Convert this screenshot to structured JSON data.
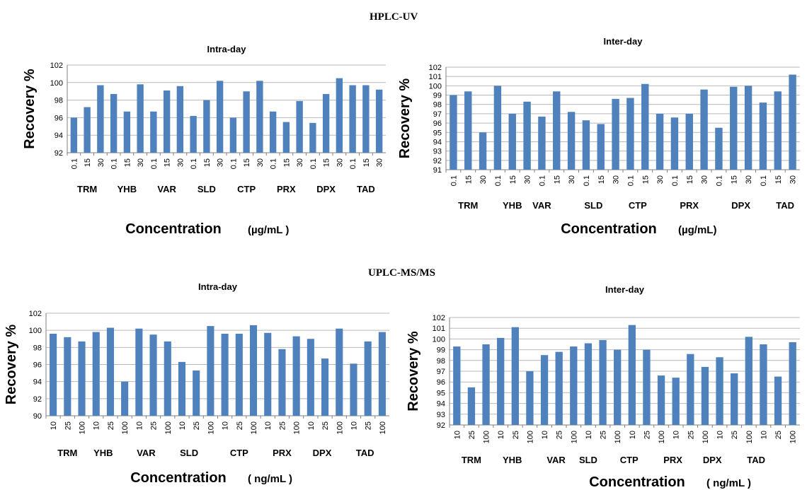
{
  "sections": {
    "hplc": {
      "title": "HPLC-UV"
    },
    "uplc": {
      "title": "UPLC-MS/MS"
    }
  },
  "bar_color": "#4F81BD",
  "chart_data": [
    {
      "id": "hplc-intra",
      "type": "bar",
      "title": "Intra-day",
      "ylabel": "Recovery %",
      "xlabel": "Concentration",
      "xunit": "(µg/mL )",
      "ylim": [
        92,
        102
      ],
      "yticks": [
        92,
        94,
        96,
        98,
        100,
        102
      ],
      "grid": true,
      "categories": [
        "0.1",
        "15",
        "30",
        "0.1",
        "15",
        "30",
        "0.1",
        "15",
        "30",
        "0.1",
        "15",
        "30",
        "0.1",
        "15",
        "30",
        "0.1",
        "15",
        "30",
        "0.1",
        "15",
        "30",
        "0.1",
        "15",
        "30"
      ],
      "values": [
        96.0,
        97.2,
        99.7,
        98.7,
        96.7,
        99.8,
        96.7,
        99.1,
        99.6,
        96.2,
        98.0,
        100.2,
        96.0,
        99.0,
        100.2,
        96.7,
        95.5,
        97.9,
        95.4,
        98.7,
        100.5,
        99.7,
        99.7,
        99.2
      ],
      "groups": [
        {
          "label": "TRM",
          "center": 1
        },
        {
          "label": "YHB",
          "center": 4
        },
        {
          "label": "VAR",
          "center": 7
        },
        {
          "label": "SLD",
          "center": 10
        },
        {
          "label": "CTP",
          "center": 13
        },
        {
          "label": "PRX",
          "center": 16
        },
        {
          "label": "DPX",
          "center": 19
        },
        {
          "label": "TAD",
          "center": 22
        }
      ]
    },
    {
      "id": "hplc-inter",
      "type": "bar",
      "title": "Inter-day",
      "ylabel": "Recovery %",
      "xlabel": "Concentration",
      "xunit": "(µg/mL)",
      "ylim": [
        91,
        102
      ],
      "yticks": [
        91,
        92,
        93,
        94,
        95,
        96,
        97,
        98,
        99,
        100,
        101,
        102
      ],
      "grid": true,
      "categories": [
        "0.1",
        "15",
        "30",
        "0.1",
        "15",
        "30",
        "0.1",
        "15",
        "30",
        "0.1",
        "15",
        "30",
        "0.1",
        "15",
        "30",
        "0.1",
        "15",
        "30",
        "0.1",
        "15",
        "30",
        "0.1",
        "15",
        "30"
      ],
      "values": [
        99.0,
        99.4,
        95.0,
        100.0,
        97.0,
        98.3,
        96.7,
        99.4,
        97.2,
        96.3,
        95.9,
        98.6,
        98.7,
        100.2,
        97.0,
        96.6,
        97.0,
        99.6,
        95.5,
        99.9,
        100.0,
        98.2,
        99.4,
        101.2
      ],
      "groups": [
        {
          "label": "TRM",
          "center": 1
        },
        {
          "label": "YHB",
          "center": 4
        },
        {
          "label": "VAR",
          "center": 6
        },
        {
          "label": "SLD",
          "center": 9.5
        },
        {
          "label": "CTP",
          "center": 12.5
        },
        {
          "label": "PRX",
          "center": 16
        },
        {
          "label": "DPX",
          "center": 19.5
        },
        {
          "label": "TAD",
          "center": 22.5
        }
      ]
    },
    {
      "id": "uplc-intra",
      "type": "bar",
      "title": "Intra-day",
      "ylabel": "Recovery %",
      "xlabel": "Concentration",
      "xunit": "( ng/mL )",
      "ylim": [
        90,
        102
      ],
      "yticks": [
        90,
        92,
        94,
        96,
        98,
        100,
        102
      ],
      "grid": true,
      "categories": [
        "10",
        "25",
        "100",
        "10",
        "25",
        "100",
        "10",
        "25",
        "100",
        "10",
        "25",
        "100",
        "10",
        "25",
        "100",
        "10",
        "25",
        "100",
        "10",
        "25",
        "100",
        "10",
        "25",
        "100"
      ],
      "values": [
        99.6,
        99.2,
        98.7,
        99.8,
        100.3,
        94.0,
        100.2,
        99.5,
        98.7,
        96.3,
        95.3,
        100.5,
        99.6,
        99.6,
        100.6,
        99.7,
        97.8,
        99.3,
        99.0,
        96.7,
        100.2,
        96.1,
        98.7,
        99.8
      ],
      "groups": [
        {
          "label": "TRM",
          "center": 1
        },
        {
          "label": "YHB",
          "center": 3.5
        },
        {
          "label": "VAR",
          "center": 6.5
        },
        {
          "label": "SLD",
          "center": 9.5
        },
        {
          "label": "CTP",
          "center": 13
        },
        {
          "label": "PRX",
          "center": 16
        },
        {
          "label": "DPX",
          "center": 18.8
        },
        {
          "label": "TAD",
          "center": 21.8
        }
      ]
    },
    {
      "id": "uplc-inter",
      "type": "bar",
      "title": "Inter-day",
      "ylabel": "Recovery %",
      "xlabel": "Concentration",
      "xunit": "( ng/mL )",
      "ylim": [
        92,
        102
      ],
      "yticks": [
        92,
        93,
        94,
        95,
        96,
        97,
        98,
        99,
        100,
        101,
        102
      ],
      "grid": true,
      "categories": [
        "10",
        "25",
        "100",
        "10",
        "25",
        "100",
        "10",
        "25",
        "100",
        "10",
        "25",
        "100",
        "10",
        "25",
        "100",
        "10",
        "25",
        "100",
        "10",
        "25",
        "100",
        "10",
        "25",
        "100"
      ],
      "values": [
        99.3,
        95.5,
        99.5,
        100.1,
        101.1,
        97.0,
        98.5,
        98.8,
        99.3,
        99.6,
        99.9,
        99.0,
        101.3,
        99.0,
        96.6,
        96.4,
        98.6,
        97.4,
        98.3,
        96.8,
        100.2,
        99.5,
        96.5,
        99.7
      ],
      "groups": [
        {
          "label": "TRM",
          "center": 1
        },
        {
          "label": "YHB",
          "center": 3.8
        },
        {
          "label": "VAR",
          "center": 6.8
        },
        {
          "label": "SLD",
          "center": 9
        },
        {
          "label": "CTP",
          "center": 11.8
        },
        {
          "label": "PRX",
          "center": 14.8
        },
        {
          "label": "DPX",
          "center": 17.5
        },
        {
          "label": "TAD",
          "center": 20.5
        }
      ]
    }
  ]
}
